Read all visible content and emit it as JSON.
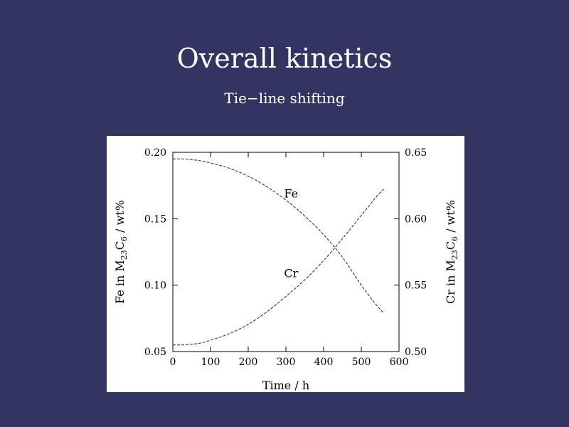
{
  "slide": {
    "title": "Overall kinetics",
    "subtitle": "Tie−line shifting"
  },
  "chart_data": {
    "type": "line",
    "title": "",
    "xlabel": "Time / h",
    "ylabel_left": {
      "prefix": "Fe in M",
      "sub1": "23",
      "mid": "C",
      "sub2": "6",
      "suffix": " / wt%"
    },
    "ylabel_right": {
      "prefix": "Cr in M",
      "sub1": "23",
      "mid": "C",
      "sub2": "6",
      "suffix": " / wt%"
    },
    "xlim": [
      0,
      600
    ],
    "ylim_left": [
      0.05,
      0.2
    ],
    "ylim_right": [
      0.5,
      0.65
    ],
    "x_ticks": [
      {
        "value": 0,
        "label": "0"
      },
      {
        "value": 100,
        "label": "100"
      },
      {
        "value": 200,
        "label": "200"
      },
      {
        "value": 300,
        "label": "300"
      },
      {
        "value": 400,
        "label": "400"
      },
      {
        "value": 500,
        "label": "500"
      },
      {
        "value": 600,
        "label": "600"
      }
    ],
    "y_ticks_left": [
      {
        "value": 0.05,
        "label": "0.05"
      },
      {
        "value": 0.1,
        "label": "0.10"
      },
      {
        "value": 0.15,
        "label": "0.15"
      },
      {
        "value": 0.2,
        "label": "0.20"
      }
    ],
    "y_ticks_right": [
      {
        "value": 0.5,
        "label": "0.50"
      },
      {
        "value": 0.55,
        "label": "0.55"
      },
      {
        "value": 0.6,
        "label": "0.60"
      },
      {
        "value": 0.65,
        "label": "0.65"
      }
    ],
    "grid": false,
    "legend": "none",
    "series": [
      {
        "name": "Fe",
        "axis": "left",
        "x": [
          0,
          25,
          50,
          75,
          100,
          150,
          200,
          250,
          300,
          350,
          400,
          450,
          500,
          540,
          560
        ],
        "y": [
          0.195,
          0.195,
          0.1945,
          0.1935,
          0.192,
          0.188,
          0.182,
          0.174,
          0.164,
          0.152,
          0.138,
          0.121,
          0.1,
          0.085,
          0.079
        ],
        "label": {
          "text": "Fe",
          "x": 295,
          "y": 0.166
        }
      },
      {
        "name": "Cr",
        "axis": "right",
        "x": [
          0,
          25,
          50,
          75,
          100,
          150,
          200,
          250,
          300,
          350,
          400,
          450,
          500,
          540,
          560
        ],
        "y": [
          0.505,
          0.505,
          0.5055,
          0.5065,
          0.5085,
          0.5135,
          0.5205,
          0.53,
          0.5415,
          0.554,
          0.5685,
          0.585,
          0.6025,
          0.6165,
          0.6225
        ],
        "label": {
          "text": "Cr",
          "x": 295,
          "y": 0.556
        }
      }
    ]
  }
}
